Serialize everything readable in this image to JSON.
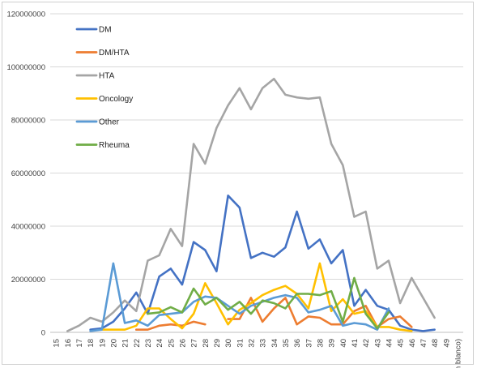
{
  "chart_data": {
    "type": "line",
    "title": "",
    "xlabel": "",
    "ylabel": "",
    "ylim": [
      0,
      120000000
    ],
    "y_ticks": [
      0,
      20000000,
      40000000,
      60000000,
      80000000,
      100000000,
      120000000
    ],
    "y_tick_labels": [
      "0",
      "20000000",
      "40000000",
      "60000000",
      "80000000",
      "100000000",
      "120000000"
    ],
    "categories": [
      "15",
      "16",
      "17",
      "18",
      "19",
      "20",
      "21",
      "22",
      "23",
      "24",
      "25",
      "26",
      "27",
      "28",
      "29",
      "30",
      "31",
      "32",
      "33",
      "34",
      "35",
      "36",
      "37",
      "38",
      "39",
      "40",
      "41",
      "42",
      "43",
      "44",
      "45",
      "46",
      "47",
      "48",
      "49",
      "(en blanco)"
    ],
    "grid": true,
    "legend_position": "top-left inside",
    "series": [
      {
        "name": "DM",
        "color": "#4472C4",
        "values": [
          null,
          null,
          null,
          1000000,
          1500000,
          4000000,
          9000000,
          15000000,
          7000000,
          21000000,
          24000000,
          18000000,
          34000000,
          31000000,
          23000000,
          51500000,
          47000000,
          28000000,
          30000000,
          28500000,
          32000000,
          45500000,
          31500000,
          35000000,
          26000000,
          31000000,
          10000000,
          16000000,
          10000000,
          8500000,
          2500000,
          1000000,
          500000,
          1000000,
          null,
          null
        ]
      },
      {
        "name": "DM/HTA",
        "color": "#ED7D31",
        "values": [
          null,
          null,
          null,
          null,
          null,
          null,
          null,
          1000000,
          1000000,
          2500000,
          3000000,
          2500000,
          4000000,
          3000000,
          null,
          5000000,
          5000000,
          13000000,
          4000000,
          9000000,
          13000000,
          3000000,
          6000000,
          5500000,
          3000000,
          3000000,
          8000000,
          10000000,
          2000000,
          5000000,
          6000000,
          2000000,
          null,
          null,
          null,
          null
        ]
      },
      {
        "name": "HTA",
        "color": "#A5A5A5",
        "values": [
          null,
          500000,
          2500000,
          5500000,
          4000000,
          7500000,
          12000000,
          8000000,
          27000000,
          29000000,
          39000000,
          32500000,
          71000000,
          63500000,
          77000000,
          85500000,
          92000000,
          84000000,
          92000000,
          95500000,
          89500000,
          88500000,
          88000000,
          88500000,
          71000000,
          63000000,
          43500000,
          45500000,
          24000000,
          27000000,
          11000000,
          20500000,
          13000000,
          5500000,
          null,
          null
        ]
      },
      {
        "name": "Oncology",
        "color": "#FFC000",
        "values": [
          null,
          null,
          null,
          null,
          1000000,
          1000000,
          1000000,
          2500000,
          9000000,
          9000000,
          5000000,
          1500000,
          7000000,
          18500000,
          11000000,
          3000000,
          8500000,
          11000000,
          14000000,
          16000000,
          17500000,
          14500000,
          9000000,
          26000000,
          8000000,
          12500000,
          7000000,
          8000000,
          2000000,
          2000000,
          1000000,
          500000,
          null,
          null,
          null,
          null
        ]
      },
      {
        "name": "Other",
        "color": "#5B9BD5",
        "values": [
          null,
          null,
          null,
          500000,
          1000000,
          26000000,
          3500000,
          4500000,
          2500000,
          6500000,
          7000000,
          7500000,
          11500000,
          13500000,
          13000000,
          10000000,
          7000000,
          10000000,
          11500000,
          13000000,
          14000000,
          13000000,
          7500000,
          8500000,
          10000000,
          2500000,
          3500000,
          3000000,
          1000000,
          9000000,
          null,
          null,
          null,
          null,
          null,
          null
        ]
      },
      {
        "name": "Rheuma",
        "color": "#70AD47",
        "values": [
          null,
          null,
          null,
          null,
          null,
          null,
          null,
          null,
          7000000,
          7500000,
          9500000,
          7500000,
          16500000,
          10500000,
          13000000,
          8500000,
          11500000,
          7000000,
          12000000,
          11000000,
          9000000,
          14500000,
          14500000,
          14000000,
          15500000,
          4000000,
          20500000,
          7000000,
          1500000,
          7500000,
          null,
          null,
          null,
          null,
          null,
          null
        ]
      }
    ]
  }
}
